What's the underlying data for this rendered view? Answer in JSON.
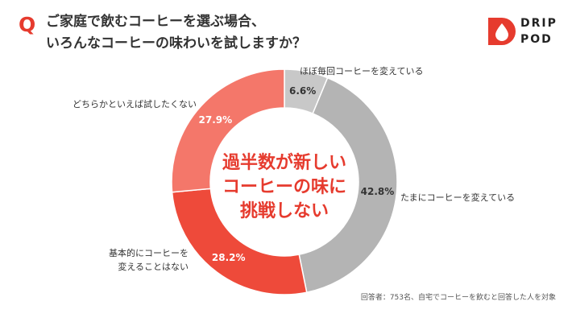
{
  "header": {
    "q_mark": "Q",
    "title_line1": "ご家庭で飲むコーヒーを選ぶ場合、",
    "title_line2": "いろんなコーヒーの味わいを試しますか？"
  },
  "logo": {
    "line1": "DRIP",
    "line2": "POD",
    "color": "#e63b2e"
  },
  "chart_data": {
    "type": "pie",
    "variant": "donut",
    "categories": [
      "ほぼ毎回コーヒーを変えている",
      "たまにコーヒーを変えている",
      "基本的にコーヒーを変えることはない",
      "どちらかといえば試したくない"
    ],
    "category_label_lines": [
      [
        "ほぼ毎回コーヒーを変えている"
      ],
      [
        "たまにコーヒーを変えている"
      ],
      [
        "基本的にコーヒーを",
        "変えることはない"
      ],
      [
        "どちらかといえば試したくない"
      ]
    ],
    "values": [
      6.6,
      42.8,
      28.2,
      27.9
    ],
    "value_labels": [
      "6.6%",
      "42.8%",
      "28.2%",
      "27.9%"
    ],
    "colors": [
      "#c8c8c8",
      "#b4b4b4",
      "#ee4a3a",
      "#f4776a"
    ],
    "center_text": [
      "過半数が新しい",
      "コーヒーの味に",
      "挑戦しない"
    ],
    "center_color": "#e63b2e"
  },
  "footnote": "回答者：753名、自宅でコーヒーを飲むと回答した人を対象"
}
